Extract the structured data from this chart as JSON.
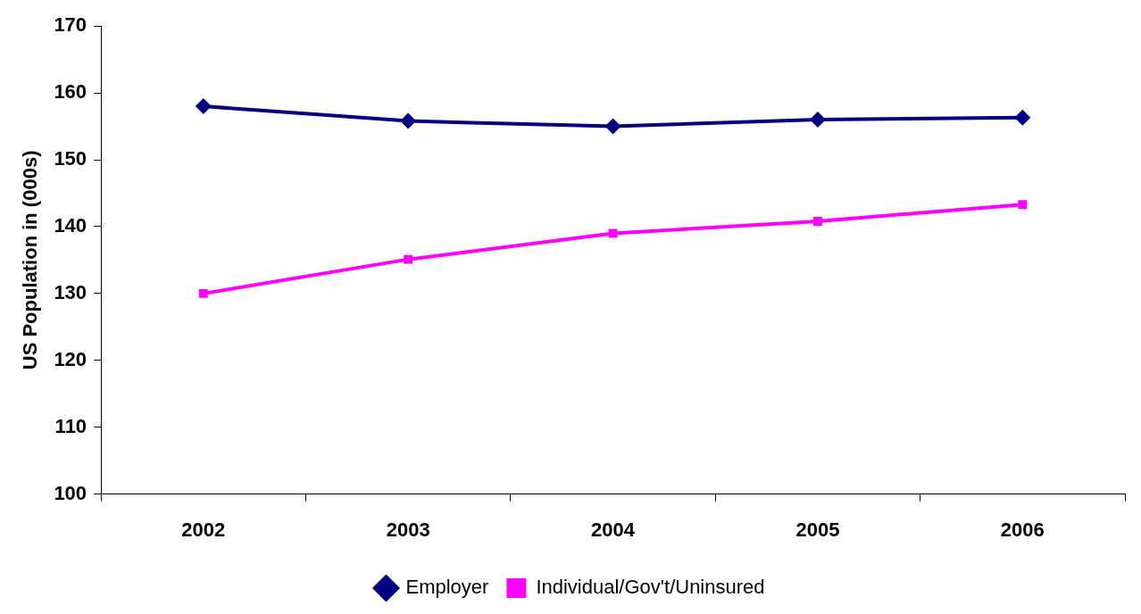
{
  "chart_data": {
    "type": "line",
    "ylabel": "US Population in (000s)",
    "categories": [
      "2002",
      "2003",
      "2004",
      "2005",
      "2006"
    ],
    "series": [
      {
        "name": "Employer",
        "color": "#000080",
        "values": [
          158,
          155.8,
          155,
          156,
          156.3
        ],
        "marker": "diamond"
      },
      {
        "name": "Individual/Gov't/Uninsured",
        "color": "#ff00ff",
        "values": [
          130,
          135.1,
          139,
          140.8,
          143.3
        ],
        "marker": "square"
      }
    ],
    "ylim": [
      100,
      170
    ],
    "yticks": [
      100,
      110,
      120,
      130,
      140,
      150,
      160,
      170
    ],
    "grid": false,
    "legend": "bottom",
    "line_style": "solid"
  }
}
